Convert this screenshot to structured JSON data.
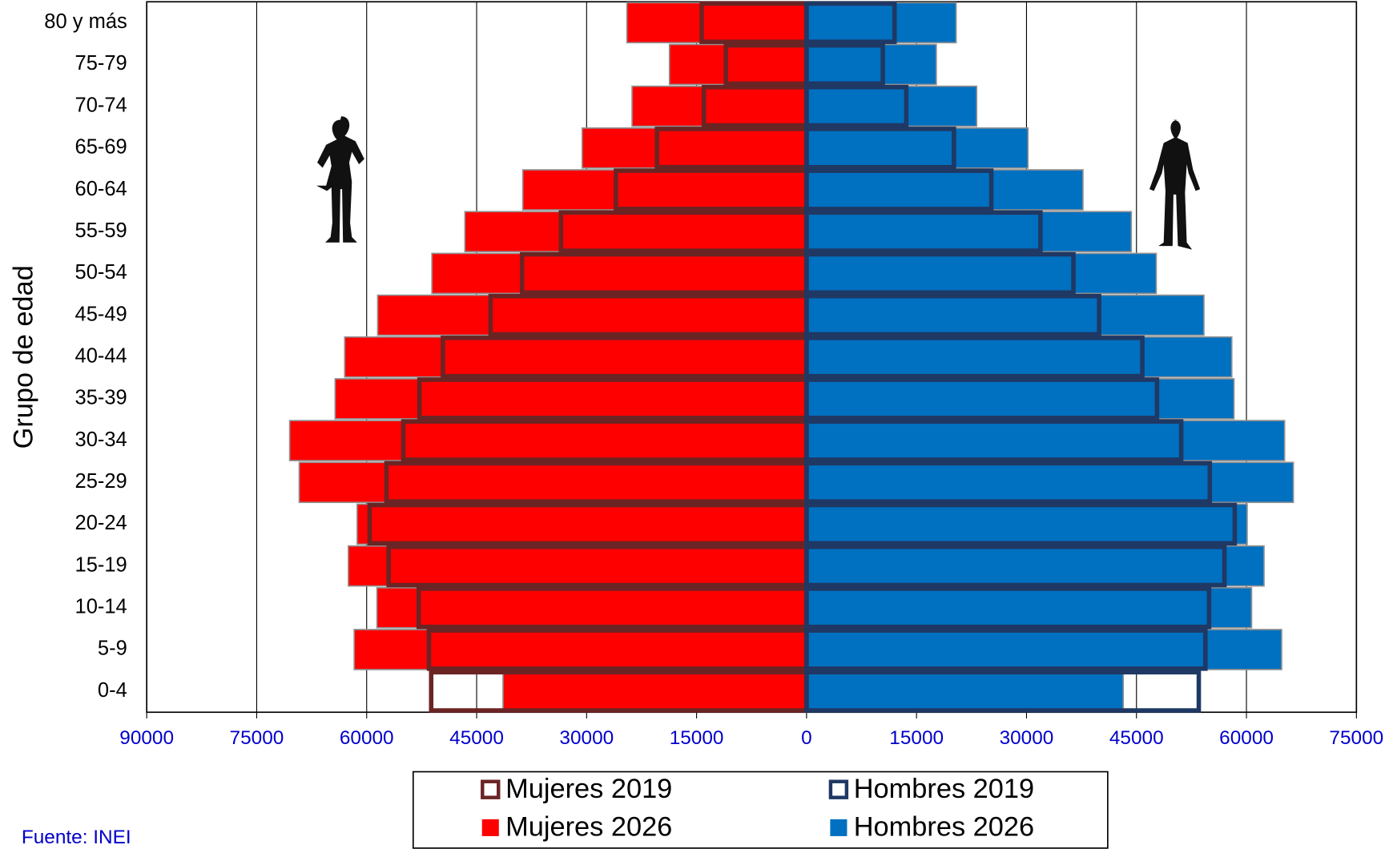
{
  "chart_data": {
    "type": "pyramid",
    "y_axis_label": "Grupo de edad",
    "source": "Fuente:  INEI",
    "categories": [
      "0-4",
      "5-9",
      "10-14",
      "15-19",
      "20-24",
      "25-29",
      "30-34",
      "35-39",
      "40-44",
      "45-49",
      "50-54",
      "55-59",
      "60-64",
      "65-69",
      "70-74",
      "75-79",
      "80 y más"
    ],
    "series": [
      {
        "name": "Mujeres 2019",
        "color": "#6b2424",
        "side": "left",
        "fill": false,
        "values": [
          51200,
          51500,
          52900,
          57000,
          59600,
          57300,
          55000,
          52800,
          49600,
          43100,
          38800,
          33500,
          26000,
          20400,
          14000,
          11000,
          14300
        ]
      },
      {
        "name": "Hombres 2019",
        "color": "#1f3864",
        "side": "right",
        "fill": false,
        "values": [
          53500,
          54400,
          54900,
          57000,
          58400,
          55000,
          51100,
          47800,
          45800,
          39900,
          36400,
          31900,
          25200,
          20100,
          13600,
          10400,
          12000
        ]
      },
      {
        "name": "Mujeres 2026",
        "color": "#ff0000",
        "side": "left",
        "fill": true,
        "values": [
          41400,
          61700,
          58600,
          62500,
          61300,
          69200,
          70500,
          64300,
          63000,
          58500,
          51100,
          46600,
          38700,
          30600,
          23800,
          18700,
          24500
        ]
      },
      {
        "name": "Hombres 2026",
        "color": "#0070c0",
        "side": "right",
        "fill": true,
        "values": [
          43200,
          64800,
          60700,
          62400,
          60100,
          66400,
          65200,
          58300,
          58000,
          54200,
          47700,
          44300,
          37700,
          30200,
          23200,
          17700,
          20400
        ]
      }
    ],
    "xlim": [
      -90000,
      75000
    ],
    "xticks": [
      {
        "value": -90000,
        "label": "90000"
      },
      {
        "value": -75000,
        "label": "75000"
      },
      {
        "value": -60000,
        "label": "60000"
      },
      {
        "value": -45000,
        "label": "45000"
      },
      {
        "value": -30000,
        "label": "30000"
      },
      {
        "value": -15000,
        "label": "15000"
      },
      0,
      15000,
      30000,
      45000,
      60000,
      75000
    ],
    "grid": true
  }
}
